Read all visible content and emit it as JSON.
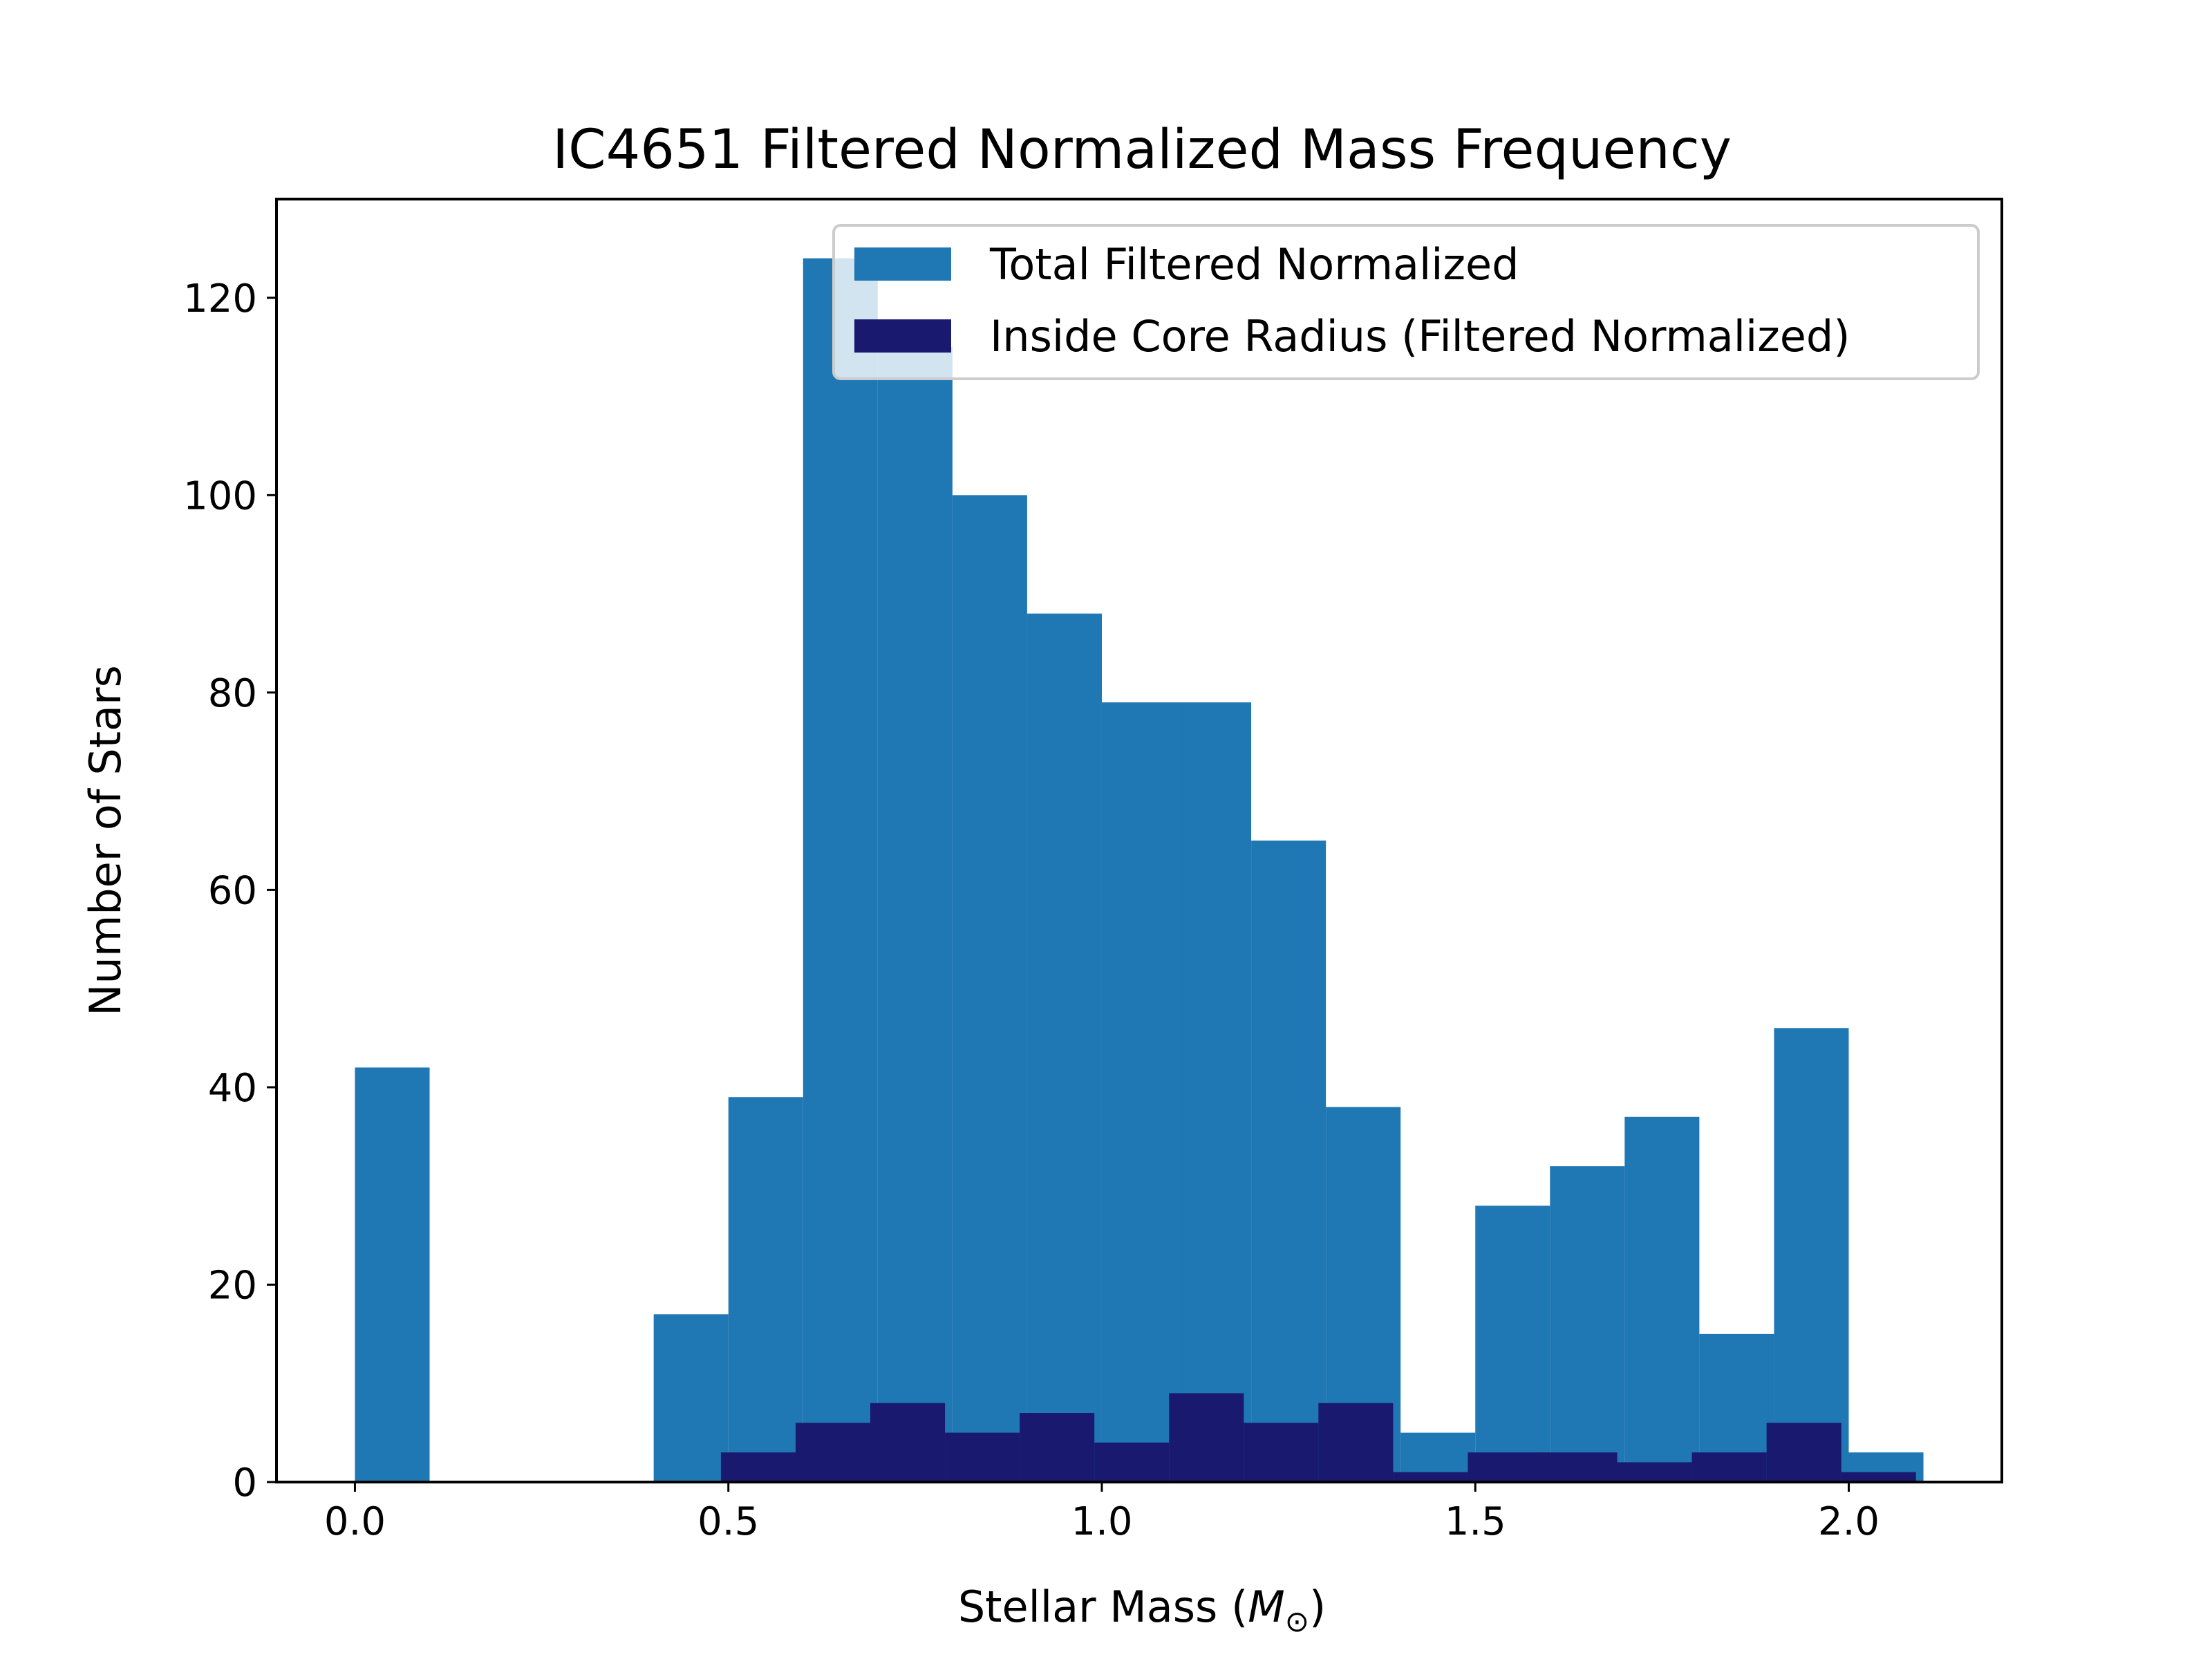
{
  "chart_data": {
    "type": "bar",
    "title": "IC4651 Filtered Normalized Mass Frequency",
    "xlabel_text": "Stellar Mass (",
    "xlabel_symbol": "M",
    "xlabel_subscript": "⊙",
    "xlabel_close": ")",
    "ylabel": "Number of Stars",
    "xlim": [
      -0.105,
      2.205
    ],
    "ylim": [
      0,
      130
    ],
    "xticks": [
      0.0,
      0.5,
      1.0,
      1.5,
      2.0
    ],
    "xtick_labels": [
      "0.0",
      "0.5",
      "1.0",
      "1.5",
      "2.0"
    ],
    "yticks": [
      0,
      20,
      40,
      60,
      80,
      100,
      120
    ],
    "ytick_labels": [
      "0",
      "20",
      "40",
      "60",
      "80",
      "100",
      "120"
    ],
    "legend_position": "upper-right",
    "series": [
      {
        "name": "Total Filtered Normalized",
        "color": "#1f77b4",
        "bins": [
          {
            "x0": 0.0,
            "x1": 0.1,
            "value": 42
          },
          {
            "x0": 0.4,
            "x1": 0.5,
            "value": 17
          },
          {
            "x0": 0.5,
            "x1": 0.6,
            "value": 39
          },
          {
            "x0": 0.6,
            "x1": 0.7,
            "value": 124
          },
          {
            "x0": 0.7,
            "x1": 0.8,
            "value": 115
          },
          {
            "x0": 0.8,
            "x1": 0.9,
            "value": 100
          },
          {
            "x0": 0.9,
            "x1": 1.0,
            "value": 88
          },
          {
            "x0": 1.0,
            "x1": 1.1,
            "value": 79
          },
          {
            "x0": 1.1,
            "x1": 1.2,
            "value": 79
          },
          {
            "x0": 1.2,
            "x1": 1.3,
            "value": 65
          },
          {
            "x0": 1.3,
            "x1": 1.4,
            "value": 38
          },
          {
            "x0": 1.4,
            "x1": 1.5,
            "value": 5
          },
          {
            "x0": 1.5,
            "x1": 1.6,
            "value": 28
          },
          {
            "x0": 1.6,
            "x1": 1.7,
            "value": 32
          },
          {
            "x0": 1.7,
            "x1": 1.8,
            "value": 37
          },
          {
            "x0": 1.8,
            "x1": 1.9,
            "value": 15
          },
          {
            "x0": 1.9,
            "x1": 2.0,
            "value": 46
          },
          {
            "x0": 2.0,
            "x1": 2.1,
            "value": 3
          }
        ]
      },
      {
        "name": "Inside Core Radius (Filtered Normalized)",
        "color": "#191970",
        "bins": [
          {
            "x0": 0.49,
            "x1": 0.59,
            "value": 3
          },
          {
            "x0": 0.59,
            "x1": 0.69,
            "value": 6
          },
          {
            "x0": 0.69,
            "x1": 0.79,
            "value": 8
          },
          {
            "x0": 0.79,
            "x1": 0.89,
            "value": 5
          },
          {
            "x0": 0.89,
            "x1": 0.99,
            "value": 7
          },
          {
            "x0": 0.99,
            "x1": 1.09,
            "value": 4
          },
          {
            "x0": 1.09,
            "x1": 1.19,
            "value": 9
          },
          {
            "x0": 1.19,
            "x1": 1.29,
            "value": 6
          },
          {
            "x0": 1.29,
            "x1": 1.39,
            "value": 8
          },
          {
            "x0": 1.39,
            "x1": 1.49,
            "value": 1
          },
          {
            "x0": 1.49,
            "x1": 1.59,
            "value": 3
          },
          {
            "x0": 1.59,
            "x1": 1.69,
            "value": 3
          },
          {
            "x0": 1.69,
            "x1": 1.79,
            "value": 2
          },
          {
            "x0": 1.79,
            "x1": 1.89,
            "value": 3
          },
          {
            "x0": 1.89,
            "x1": 1.99,
            "value": 6
          },
          {
            "x0": 1.99,
            "x1": 2.09,
            "value": 1
          }
        ]
      }
    ]
  }
}
